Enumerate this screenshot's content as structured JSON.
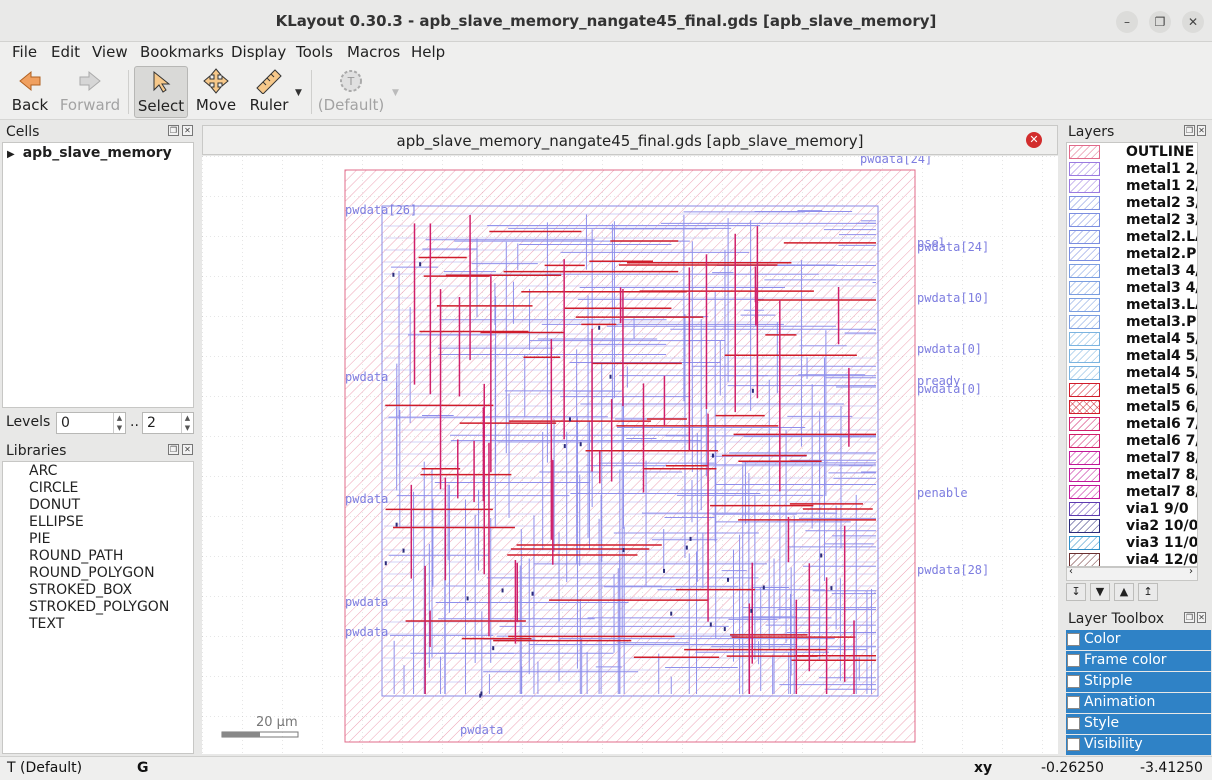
{
  "window": {
    "title": "KLayout 0.30.3 - apb_slave_memory_nangate45_final.gds [apb_slave_memory]"
  },
  "menu": [
    "File",
    "Edit",
    "View",
    "Bookmarks",
    "Display",
    "Tools",
    "Macros",
    "Help"
  ],
  "toolbar": {
    "back": "Back",
    "forward": "Forward",
    "select": "Select",
    "move": "Move",
    "ruler": "Ruler",
    "default": "(Default)"
  },
  "cells": {
    "header": "Cells",
    "root": "apb_slave_memory"
  },
  "levels": {
    "label": "Levels",
    "from": "0",
    "sep": "..",
    "to": "2"
  },
  "libraries": {
    "header": "Libraries",
    "items": [
      "ARC",
      "CIRCLE",
      "DONUT",
      "ELLIPSE",
      "PIE",
      "ROUND_PATH",
      "ROUND_POLYGON",
      "STROKED_BOX",
      "STROKED_POLYGON",
      "TEXT"
    ]
  },
  "layout_tab": {
    "title": "apb_slave_memory_nangate45_final.gds [apb_slave_memory]"
  },
  "canvas": {
    "scale_label": "20 µm",
    "pin_labels_right": [
      "pwdata[24]",
      "pwdata[10]",
      "pwdata[0]",
      "pready",
      "pwdata[0]",
      "pwdata[28]",
      "psel",
      "penable"
    ],
    "pin_labels_left": [
      "pwdata[26]",
      "pwdata",
      "pwdata",
      "pwdata",
      "pwdata"
    ],
    "pin_labels_top": [
      "pwdata[24]"
    ],
    "pin_labels_bottom": [
      "pwdata"
    ]
  },
  "layers": {
    "header": "Layers",
    "items": [
      {
        "name": "OUTLINE 1",
        "color": "#e06b8a",
        "pattern": "diag"
      },
      {
        "name": "metal1 2/0",
        "color": "#9b7be0",
        "pattern": "diag"
      },
      {
        "name": "metal1 2/0",
        "color": "#9b7be0",
        "pattern": "diag"
      },
      {
        "name": "metal2 3/0",
        "color": "#7b8ee0",
        "pattern": "diag"
      },
      {
        "name": "metal2 3/0",
        "color": "#7b8ee0",
        "pattern": "diag"
      },
      {
        "name": "metal2.LABEL",
        "color": "#7b8ee0",
        "pattern": "diag"
      },
      {
        "name": "metal2.PIN",
        "color": "#7b8ee0",
        "pattern": "diag"
      },
      {
        "name": "metal3 4/0",
        "color": "#7b9ee0",
        "pattern": "diag"
      },
      {
        "name": "metal3 4/0",
        "color": "#7b9ee0",
        "pattern": "diag"
      },
      {
        "name": "metal3.LABEL",
        "color": "#7b9ee0",
        "pattern": "diag"
      },
      {
        "name": "metal3.PIN",
        "color": "#7b9ee0",
        "pattern": "diag"
      },
      {
        "name": "metal4 5/0",
        "color": "#7bb4e0",
        "pattern": "diag"
      },
      {
        "name": "metal4 5/0",
        "color": "#7bb4e0",
        "pattern": "diag"
      },
      {
        "name": "metal4 5/0",
        "color": "#7bb4e0",
        "pattern": "diag"
      },
      {
        "name": "metal5 6/0",
        "color": "#d01c2a",
        "pattern": "diag"
      },
      {
        "name": "metal5 6/0",
        "color": "#d01c2a",
        "pattern": "cross"
      },
      {
        "name": "metal6 7/0",
        "color": "#d0206a",
        "pattern": "diag"
      },
      {
        "name": "metal6 7/0",
        "color": "#d0206a",
        "pattern": "diag"
      },
      {
        "name": "metal7 8/0",
        "color": "#c0189a",
        "pattern": "diag"
      },
      {
        "name": "metal7 8/0",
        "color": "#c0189a",
        "pattern": "diag"
      },
      {
        "name": "metal7 8/0",
        "color": "#c0189a",
        "pattern": "diag"
      },
      {
        "name": "via1 9/0",
        "color": "#5d3bb0",
        "pattern": "diag"
      },
      {
        "name": "via2 10/0",
        "color": "#2b2b7a",
        "pattern": "diag"
      },
      {
        "name": "via3 11/0",
        "color": "#2f8fc8",
        "pattern": "diag"
      },
      {
        "name": "via4 12/0",
        "color": "#6b3030",
        "pattern": "diag"
      }
    ]
  },
  "layer_toolbox": {
    "header": "Layer Toolbox",
    "items": [
      "Color",
      "Frame color",
      "Stipple",
      "Animation",
      "Style",
      "Visibility"
    ]
  },
  "status": {
    "mode": "T  (Default)",
    "grid": "G",
    "coord_label": "xy",
    "x": "-0.26250",
    "y": "-3.41250"
  },
  "colors": {
    "accent": "#2f82c6",
    "outline": "#e06b8a",
    "metal1": "#8a8ae6",
    "metal5": "#d01c2a",
    "metal6": "#d0206a"
  }
}
